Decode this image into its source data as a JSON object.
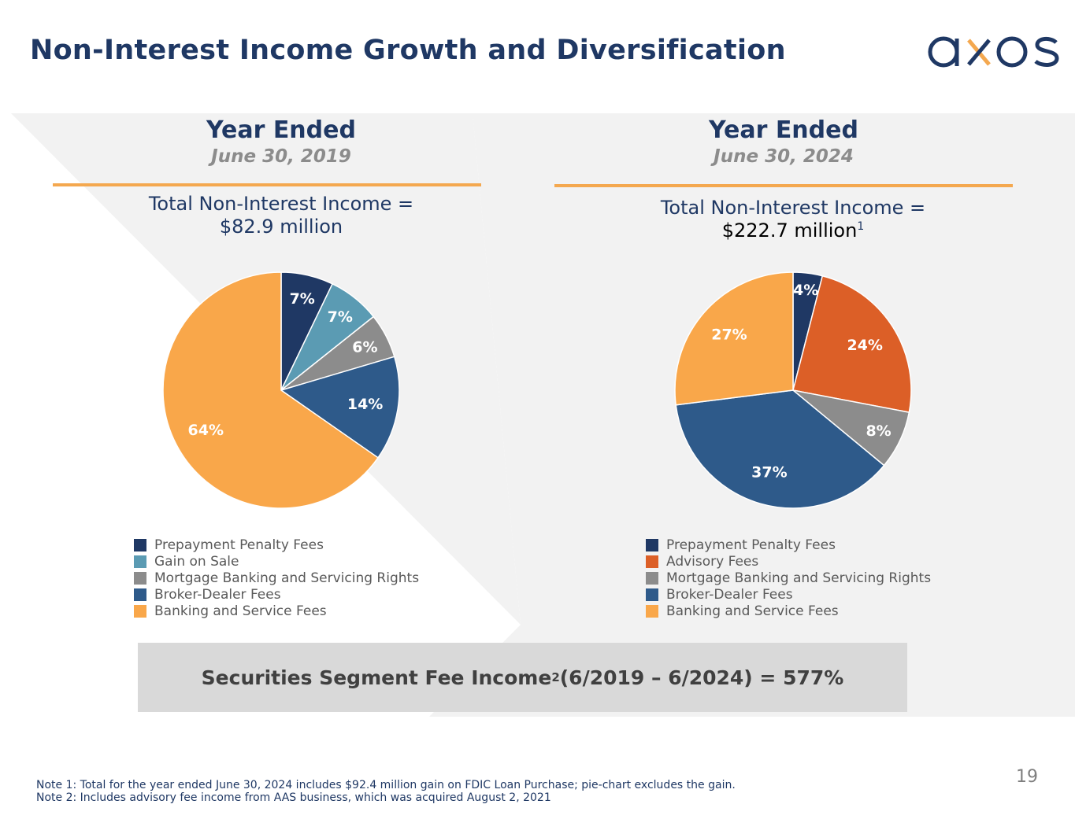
{
  "page": {
    "title": "Non-Interest Income Growth and Diversification",
    "logo_text": "axos",
    "page_number": "19"
  },
  "colors": {
    "navy": "#1f3864",
    "accent_orange": "#f4a84f",
    "background_gray": "#f2f2f2",
    "callout_gray": "#d9d9d9"
  },
  "left_panel": {
    "heading": "Year Ended",
    "date": "June 30, 2019",
    "total_line1": "Total Non-Interest Income =",
    "total_line2": "$82.9 million",
    "total_footnote": ""
  },
  "right_panel": {
    "heading": "Year Ended",
    "date": "June 30, 2024",
    "total_line1": "Total Non-Interest Income =",
    "total_line2": "$222.7 million",
    "total_footnote": "1"
  },
  "callout": {
    "text_before": "Securities Segment Fee Income",
    "footnote": "2",
    "text_after": " (6/2019 – 6/2024) = 577%"
  },
  "notes": [
    "Note 1: Total for the year ended June 30, 2024 includes $92.4 million gain on FDIC Loan Purchase; pie-chart excludes the gain.",
    "Note 2: Includes advisory fee income from AAS business, which was acquired August 2, 2021"
  ],
  "chart_data": [
    {
      "type": "pie",
      "title": "Year Ended June 30, 2019",
      "categories": [
        "Prepayment Penalty Fees",
        "Gain on Sale",
        "Mortgage Banking and Servicing Rights",
        "Broker-Dealer Fees",
        "Banking and Service Fees"
      ],
      "values": [
        7,
        7,
        6,
        14,
        64
      ],
      "labels": [
        "7%",
        "7%",
        "6%",
        "14%",
        "64%"
      ],
      "colors": [
        "#1f3864",
        "#5b9bb3",
        "#8c8c8c",
        "#2e5a8a",
        "#f9a74a"
      ],
      "legend_position": "bottom"
    },
    {
      "type": "pie",
      "title": "Year Ended June 30, 2024",
      "categories": [
        "Prepayment Penalty Fees",
        "Advisory Fees",
        "Mortgage Banking and Servicing Rights",
        "Broker-Dealer Fees",
        "Banking and Service Fees"
      ],
      "values": [
        4,
        24,
        8,
        37,
        27
      ],
      "labels": [
        "4%",
        "24%",
        "8%",
        "37%",
        "27%"
      ],
      "colors": [
        "#1f3864",
        "#dc5f27",
        "#8c8c8c",
        "#2e5a8a",
        "#f9a74a"
      ],
      "legend_position": "bottom"
    }
  ]
}
